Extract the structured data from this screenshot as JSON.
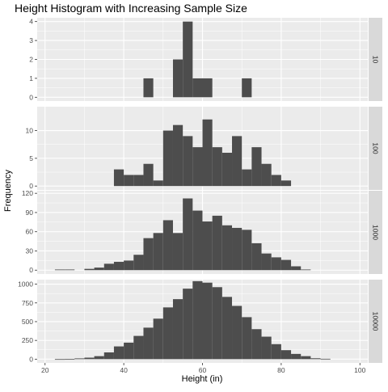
{
  "chart_data": {
    "type": "bar",
    "title": "Height Histogram with Increasing Sample Size",
    "xlabel": "Height (in)",
    "ylabel": "Frequency",
    "xlim": [
      18,
      102
    ],
    "x_ticks": [
      20,
      40,
      60,
      80,
      100
    ],
    "bin_width": 2.5,
    "colors": {
      "bar": "#4d4d4d",
      "panel_bg": "#ebebeb",
      "grid": "#ffffff",
      "strip_bg": "#d9d9d9"
    },
    "grid": true,
    "facets": [
      {
        "label": "10",
        "ylim": [
          -0.2,
          4.2
        ],
        "y_ticks": [
          0,
          1,
          2,
          3,
          4
        ],
        "bins": [
          {
            "x": 46.25,
            "count": 1
          },
          {
            "x": 53.75,
            "count": 2
          },
          {
            "x": 56.25,
            "count": 4
          },
          {
            "x": 58.75,
            "count": 1
          },
          {
            "x": 61.25,
            "count": 1
          },
          {
            "x": 71.25,
            "count": 1
          }
        ]
      },
      {
        "label": "100",
        "ylim": [
          -0.7,
          14.3
        ],
        "y_ticks": [
          0,
          5,
          10
        ],
        "bins": [
          {
            "x": 38.75,
            "count": 3
          },
          {
            "x": 41.25,
            "count": 2
          },
          {
            "x": 43.75,
            "count": 2
          },
          {
            "x": 46.25,
            "count": 4
          },
          {
            "x": 48.75,
            "count": 1
          },
          {
            "x": 51.25,
            "count": 10
          },
          {
            "x": 53.75,
            "count": 11
          },
          {
            "x": 56.25,
            "count": 9
          },
          {
            "x": 58.75,
            "count": 7
          },
          {
            "x": 61.25,
            "count": 12
          },
          {
            "x": 63.75,
            "count": 7
          },
          {
            "x": 66.25,
            "count": 6
          },
          {
            "x": 68.75,
            "count": 9
          },
          {
            "x": 71.25,
            "count": 3
          },
          {
            "x": 73.75,
            "count": 7
          },
          {
            "x": 76.25,
            "count": 4
          },
          {
            "x": 78.75,
            "count": 2
          },
          {
            "x": 81.25,
            "count": 1
          }
        ]
      },
      {
        "label": "1000",
        "ylim": [
          -6,
          124
        ],
        "y_ticks": [
          0,
          30,
          60,
          90,
          120
        ],
        "bins": [
          {
            "x": 23.75,
            "count": 1
          },
          {
            "x": 26.25,
            "count": 1
          },
          {
            "x": 31.25,
            "count": 2
          },
          {
            "x": 33.75,
            "count": 4
          },
          {
            "x": 36.25,
            "count": 10
          },
          {
            "x": 38.75,
            "count": 13
          },
          {
            "x": 41.25,
            "count": 15
          },
          {
            "x": 43.75,
            "count": 24
          },
          {
            "x": 46.25,
            "count": 50
          },
          {
            "x": 48.75,
            "count": 58
          },
          {
            "x": 51.25,
            "count": 78
          },
          {
            "x": 53.75,
            "count": 58
          },
          {
            "x": 56.25,
            "count": 112
          },
          {
            "x": 58.75,
            "count": 93
          },
          {
            "x": 61.25,
            "count": 76
          },
          {
            "x": 63.75,
            "count": 85
          },
          {
            "x": 66.25,
            "count": 70
          },
          {
            "x": 68.75,
            "count": 66
          },
          {
            "x": 71.25,
            "count": 63
          },
          {
            "x": 73.75,
            "count": 42
          },
          {
            "x": 76.25,
            "count": 26
          },
          {
            "x": 78.75,
            "count": 20
          },
          {
            "x": 81.25,
            "count": 16
          },
          {
            "x": 83.75,
            "count": 6
          },
          {
            "x": 86.25,
            "count": 1
          }
        ]
      },
      {
        "label": "10000",
        "ylim": [
          -50,
          1060
        ],
        "y_ticks": [
          0,
          250,
          500,
          750,
          1000
        ],
        "bins": [
          {
            "x": 23.75,
            "count": 1
          },
          {
            "x": 26.25,
            "count": 4
          },
          {
            "x": 28.75,
            "count": 10
          },
          {
            "x": 31.25,
            "count": 20
          },
          {
            "x": 33.75,
            "count": 40
          },
          {
            "x": 36.25,
            "count": 90
          },
          {
            "x": 38.75,
            "count": 170
          },
          {
            "x": 41.25,
            "count": 220
          },
          {
            "x": 43.75,
            "count": 310
          },
          {
            "x": 46.25,
            "count": 420
          },
          {
            "x": 48.75,
            "count": 540
          },
          {
            "x": 51.25,
            "count": 690
          },
          {
            "x": 53.75,
            "count": 800
          },
          {
            "x": 56.25,
            "count": 940
          },
          {
            "x": 58.75,
            "count": 1040
          },
          {
            "x": 61.25,
            "count": 1020
          },
          {
            "x": 63.75,
            "count": 960
          },
          {
            "x": 66.25,
            "count": 830
          },
          {
            "x": 68.75,
            "count": 710
          },
          {
            "x": 71.25,
            "count": 560
          },
          {
            "x": 73.75,
            "count": 400
          },
          {
            "x": 76.25,
            "count": 300
          },
          {
            "x": 78.75,
            "count": 200
          },
          {
            "x": 81.25,
            "count": 120
          },
          {
            "x": 83.75,
            "count": 70
          },
          {
            "x": 86.25,
            "count": 40
          },
          {
            "x": 88.75,
            "count": 12
          },
          {
            "x": 91.25,
            "count": 5
          }
        ]
      }
    ]
  }
}
